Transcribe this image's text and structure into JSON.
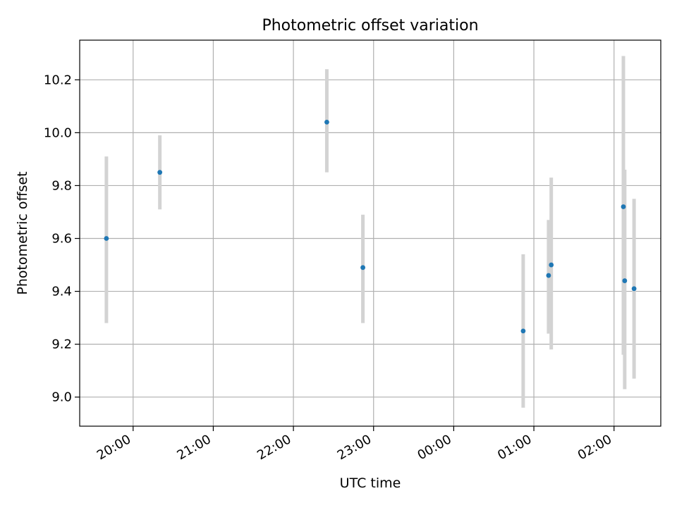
{
  "chart_data": {
    "type": "scatter",
    "title": "Photometric offset variation",
    "xlabel": "UTC time",
    "ylabel": "Photometric offset",
    "x_unit": "UTC time",
    "xlim": [
      "19:20",
      "02:35"
    ],
    "ylim": [
      8.89,
      10.35
    ],
    "x_ticks": [
      "20:00",
      "21:00",
      "22:00",
      "23:00",
      "00:00",
      "01:00",
      "02:00"
    ],
    "y_ticks": [
      "9.0",
      "9.2",
      "9.4",
      "9.6",
      "9.8",
      "10.0",
      "10.2"
    ],
    "grid": true,
    "legend": "none",
    "colors": {
      "points": "#1f77b4",
      "errorbars": "#d3d3d3",
      "grid": "#b0b0b0"
    },
    "points": [
      {
        "x": "19:40",
        "y": 9.6,
        "yerr_low": 9.28,
        "yerr_high": 9.91
      },
      {
        "x": "20:20",
        "y": 9.85,
        "yerr_low": 9.71,
        "yerr_high": 9.99
      },
      {
        "x": "22:25",
        "y": 10.04,
        "yerr_low": 9.85,
        "yerr_high": 10.24
      },
      {
        "x": "22:52",
        "y": 9.49,
        "yerr_low": 9.28,
        "yerr_high": 9.69
      },
      {
        "x": "00:52",
        "y": 9.25,
        "yerr_low": 8.96,
        "yerr_high": 9.54
      },
      {
        "x": "01:11",
        "y": 9.46,
        "yerr_low": 9.24,
        "yerr_high": 9.67
      },
      {
        "x": "01:13",
        "y": 9.5,
        "yerr_low": 9.18,
        "yerr_high": 9.83
      },
      {
        "x": "02:07",
        "y": 9.72,
        "yerr_low": 9.16,
        "yerr_high": 10.29
      },
      {
        "x": "02:08",
        "y": 9.44,
        "yerr_low": 9.03,
        "yerr_high": 9.86
      },
      {
        "x": "02:15",
        "y": 9.41,
        "yerr_low": 9.07,
        "yerr_high": 9.75
      }
    ]
  }
}
